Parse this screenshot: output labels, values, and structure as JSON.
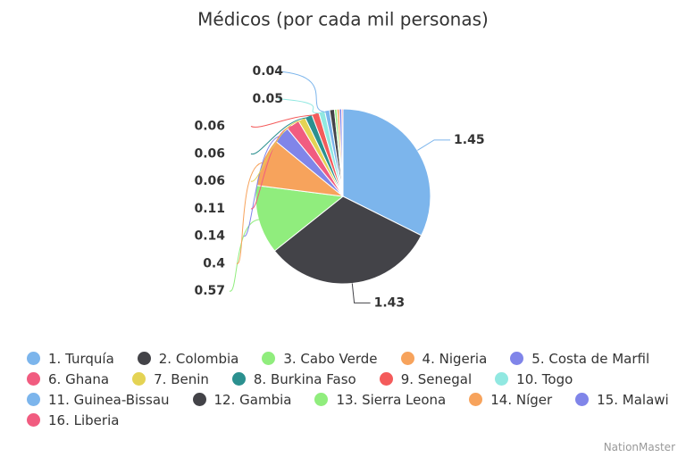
{
  "chart_data": {
    "type": "pie",
    "title": "Médicos (por cada mil personas)",
    "credit": "NationMaster",
    "categories": [
      "1. Turquía",
      "2. Colombia",
      "3. Cabo Verde",
      "4. Nigeria",
      "5. Costa de Marfil",
      "6. Ghana",
      "7. Benin",
      "8. Burkina Faso",
      "9. Senegal",
      "10. Togo",
      "11. Guinea-Bissau",
      "12. Gambia",
      "13. Sierra Leona",
      "14. Níger",
      "15. Malawi",
      "16. Liberia"
    ],
    "values": [
      1.45,
      1.43,
      0.57,
      0.4,
      0.14,
      0.11,
      0.06,
      0.06,
      0.06,
      0.05,
      0.04,
      0.04,
      0.02,
      0.02,
      0.02,
      0.01
    ],
    "value_labels": [
      "1.45",
      "1.43",
      "0.57",
      "0.4",
      "0.14",
      "0.11",
      "0.06",
      "0.06",
      "0.06",
      "0.05",
      "0.04",
      null,
      null,
      null,
      null,
      null
    ],
    "colors": [
      "#7cb5ec",
      "#434348",
      "#90ed7d",
      "#f7a35c",
      "#8085e9",
      "#f15c80",
      "#e4d354",
      "#2b908f",
      "#f45b5b",
      "#91e8e1",
      "#7cb5ec",
      "#434348",
      "#90ed7d",
      "#f7a35c",
      "#8085e9",
      "#f15c80"
    ],
    "legend": "bottom"
  }
}
